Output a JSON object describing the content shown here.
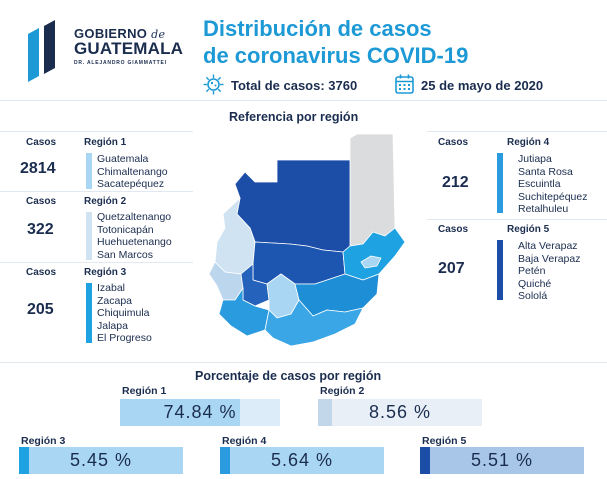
{
  "header": {
    "logo": {
      "line1_a": "GOBIERNO",
      "line1_b": "de",
      "line2": "GUATEMALA",
      "line3": "DR. ALEJANDRO GIAMMATTEI"
    },
    "title_line1": "Distribución de casos",
    "title_line2": "de coronavirus COVID-19",
    "total_label": "Total de casos: 3760",
    "date_label": "25 de mayo de 2020"
  },
  "map_section": {
    "title": "Referencia por región"
  },
  "regions": [
    {
      "cases_label": "Casos",
      "region_label": "Región 1",
      "cases": "2814",
      "color": "#a9d6f2",
      "departments": [
        "Guatemala",
        "Chimaltenango",
        "Sacatepéquez"
      ]
    },
    {
      "cases_label": "Casos",
      "region_label": "Región 2",
      "cases": "322",
      "color": "#cfe3f3",
      "departments": [
        "Quetzaltenango",
        "Totonicapán",
        "Huehuetenango",
        "San Marcos"
      ]
    },
    {
      "cases_label": "Casos",
      "region_label": "Región 3",
      "cases": "205",
      "color": "#1ea2e2",
      "departments": [
        "Izabal",
        "Zacapa",
        "Chiquimula",
        "Jalapa",
        "El Progreso"
      ]
    },
    {
      "cases_label": "Casos",
      "region_label": "Región 4",
      "cases": "212",
      "color": "#2b9be0",
      "departments": [
        "Jutiapa",
        "Santa Rosa",
        "Escuintla",
        "Suchitepéquez",
        "Retalhuleu"
      ]
    },
    {
      "cases_label": "Casos",
      "region_label": "Región 5",
      "cases": "207",
      "color": "#1c4ea8",
      "departments": [
        "Alta Verapaz",
        "Baja Verapaz",
        "Petén",
        "Quiché",
        "Sololá"
      ]
    }
  ],
  "percent_section": {
    "title": "Porcentaje de casos por región",
    "bars": [
      {
        "label": "Región 1",
        "text": "74.84 %",
        "fill": 0.7484,
        "accent": "#a9d6f2",
        "bg": "#dcedf9",
        "fill_color": "#a9d6f2"
      },
      {
        "label": "Región 2",
        "text": "8.56 %",
        "fill": 0.0856,
        "accent": "#c3d7ea",
        "bg": "#e8eff7",
        "fill_color": "#c3d7ea"
      },
      {
        "label": "Región 3",
        "text": "5.45 %",
        "fill": 0.0545,
        "accent": "#1ea2e2",
        "bg": "#a9d6f2",
        "fill_color": "#1ea2e2"
      },
      {
        "label": "Región 4",
        "text": "5.64 %",
        "fill": 0.0564,
        "accent": "#2b9be0",
        "bg": "#a9d6f2",
        "fill_color": "#2b9be0"
      },
      {
        "label": "Región 5",
        "text": "5.51 %",
        "fill": 0.0551,
        "accent": "#1c4ea8",
        "bg": "#a8c6e8",
        "fill_color": "#1c4ea8"
      }
    ]
  },
  "map_colors": {
    "peten_grey": "#dadcde",
    "region1": "#a9d6f2",
    "region2": "#cfe3f3",
    "region3": "#1ea2e2",
    "region4": "#2b9be0",
    "region5": "#1c4ea8",
    "stroke": "#ffffff"
  }
}
